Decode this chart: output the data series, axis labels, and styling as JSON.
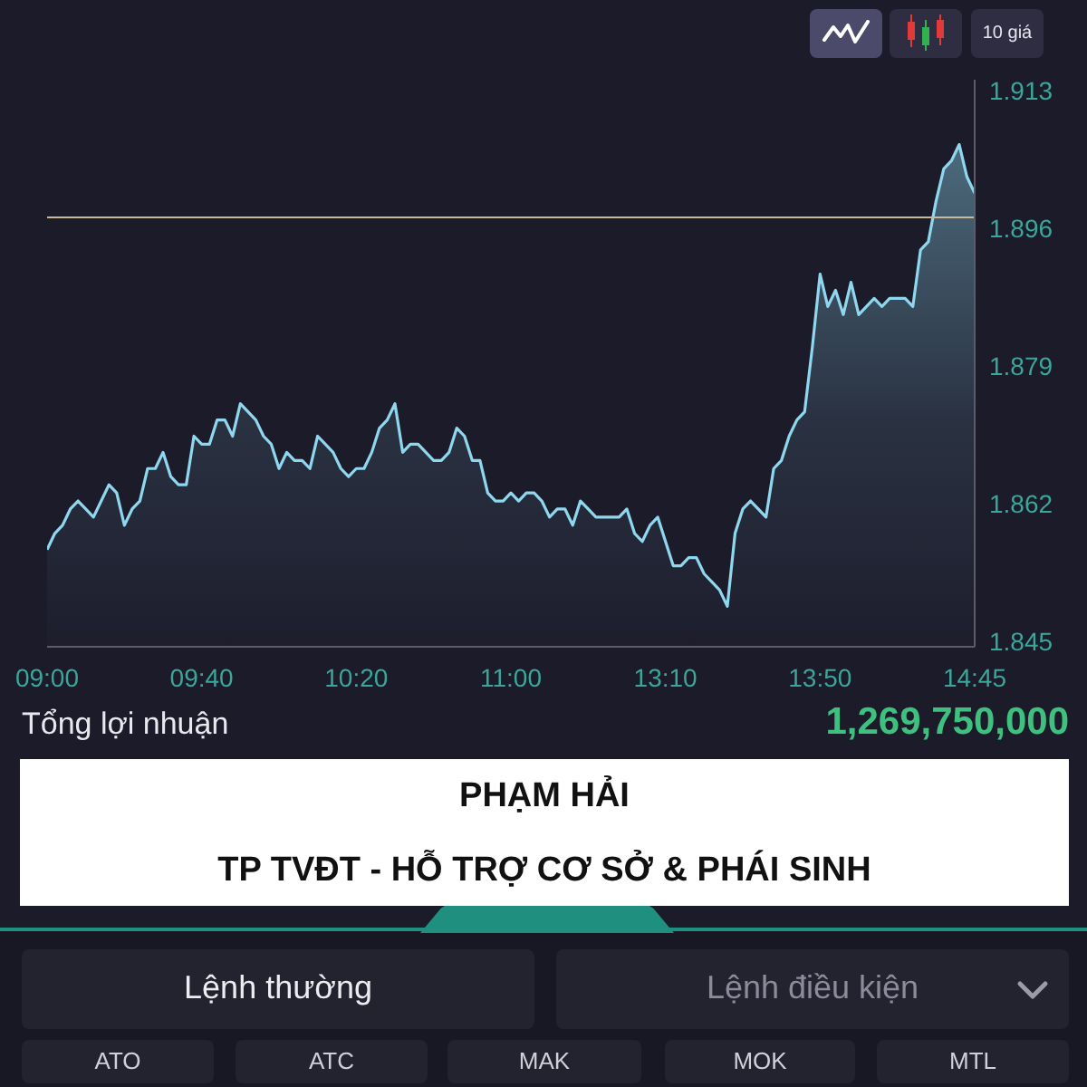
{
  "chart_data": {
    "type": "area",
    "categories": [
      "09:00",
      null,
      null,
      null,
      null,
      null,
      null,
      null,
      null,
      null,
      null,
      null,
      null,
      null,
      null,
      null,
      null,
      null,
      null,
      null,
      "09:40",
      null,
      null,
      null,
      null,
      null,
      null,
      null,
      null,
      null,
      null,
      null,
      null,
      null,
      null,
      null,
      null,
      null,
      null,
      null,
      "10:20",
      null,
      null,
      null,
      null,
      null,
      null,
      null,
      null,
      null,
      null,
      null,
      null,
      null,
      null,
      null,
      null,
      null,
      null,
      null,
      "11:00",
      null,
      null,
      null,
      null,
      null,
      null,
      null,
      null,
      null,
      null,
      null,
      null,
      null,
      null,
      null,
      null,
      null,
      null,
      null,
      "13:10",
      null,
      null,
      null,
      null,
      null,
      null,
      null,
      null,
      null,
      null,
      null,
      null,
      null,
      null,
      null,
      null,
      null,
      null,
      null,
      "13:50",
      null,
      null,
      null,
      null,
      null,
      null,
      null,
      null,
      null,
      null,
      null,
      null,
      null,
      null,
      null,
      null,
      null,
      null,
      null,
      "14:45"
    ],
    "series": [
      {
        "color": "#8ed7ee",
        "values": [
          1.857,
          1.859,
          1.86,
          1.862,
          1.863,
          1.862,
          1.861,
          1.863,
          1.865,
          1.864,
          1.86,
          1.862,
          1.863,
          1.867,
          1.867,
          1.869,
          1.866,
          1.865,
          1.865,
          1.871,
          1.87,
          1.87,
          1.873,
          1.873,
          1.871,
          1.875,
          1.874,
          1.873,
          1.871,
          1.87,
          1.867,
          1.869,
          1.868,
          1.868,
          1.867,
          1.871,
          1.87,
          1.869,
          1.867,
          1.866,
          1.867,
          1.867,
          1.869,
          1.872,
          1.873,
          1.875,
          1.869,
          1.87,
          1.87,
          1.869,
          1.868,
          1.868,
          1.869,
          1.872,
          1.871,
          1.868,
          1.868,
          1.864,
          1.863,
          1.863,
          1.864,
          1.863,
          1.864,
          1.864,
          1.863,
          1.861,
          1.862,
          1.862,
          1.86,
          1.863,
          1.862,
          1.861,
          1.861,
          1.861,
          1.861,
          1.862,
          1.859,
          1.858,
          1.86,
          1.861,
          1.858,
          1.855,
          1.855,
          1.856,
          1.856,
          1.854,
          1.853,
          1.852,
          1.85,
          1.859,
          1.862,
          1.863,
          1.862,
          1.861,
          1.867,
          1.868,
          1.871,
          1.873,
          1.874,
          1.882,
          1.891,
          1.887,
          1.889,
          1.886,
          1.89,
          1.886,
          1.887,
          1.888,
          1.887,
          1.888,
          1.888,
          1.888,
          1.887,
          1.894,
          1.895,
          1.9,
          1.904,
          1.905,
          1.907,
          1.903,
          1.901
        ]
      }
    ],
    "ylim": [
      1.845,
      1.915
    ],
    "yticks": [
      1.845,
      1.862,
      1.879,
      1.896,
      1.913
    ],
    "ref_lines": [
      {
        "axis": "y",
        "value": 1.898,
        "color": "#c9b99b"
      }
    ],
    "annotations": [
      "10 giá",
      "Tổng lợi nhuận",
      "1,269,750,000",
      "PHẠM HẢI",
      "TP TVĐT - HỖ TRỢ CƠ SỞ & PHÁI SINH",
      "Lệnh thường",
      "Lệnh điều kiện",
      "ATO",
      "ATC",
      "MAK",
      "MOK",
      "MTL"
    ]
  }
}
